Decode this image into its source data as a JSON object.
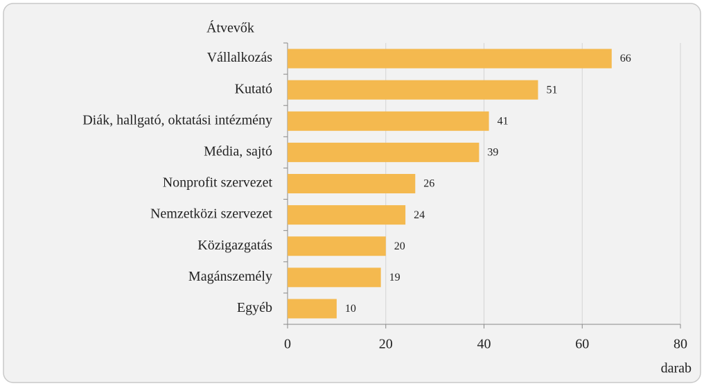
{
  "chart_data": {
    "type": "bar",
    "orientation": "horizontal",
    "y_title": "Átvevők",
    "x_label": "darab",
    "categories": [
      "Vállalkozás",
      "Kutató",
      "Diák, hallgató, oktatási intézmény",
      "Média, sajtó",
      "Nonprofit szervezet",
      "Nemzetközi szervezet",
      "Közigazgatás",
      "Magánszemély",
      "Egyéb"
    ],
    "values": [
      66,
      51,
      41,
      39,
      26,
      24,
      20,
      19,
      10
    ],
    "color": "#f4b94f",
    "xlim": [
      0,
      80
    ],
    "xticks": [
      0,
      20,
      40,
      60,
      80
    ],
    "grid": true
  }
}
